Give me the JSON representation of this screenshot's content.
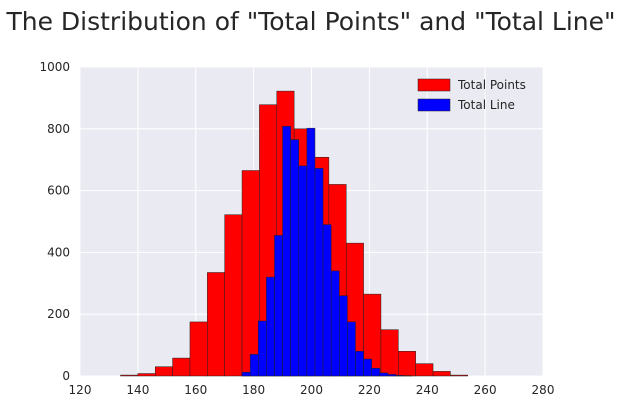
{
  "chart_data": {
    "type": "histogram",
    "title": "The Distribution of \"Total Points\" and \"Total Line\"",
    "xlabel": "",
    "ylabel": "",
    "xlim": [
      120,
      280
    ],
    "ylim": [
      0,
      1000
    ],
    "xticks": [
      120,
      140,
      160,
      180,
      200,
      220,
      240,
      260,
      280
    ],
    "yticks": [
      0,
      200,
      400,
      600,
      800,
      1000
    ],
    "grid": true,
    "legend_position": "top-right",
    "series": [
      {
        "name": "Total Points",
        "color": "#ff0000",
        "bin_edges": [
          134,
          140,
          146,
          152,
          158,
          164,
          170,
          176,
          182,
          188,
          194,
          200,
          206,
          212,
          218,
          224,
          230,
          236,
          242,
          248,
          254,
          260,
          266,
          272
        ],
        "counts": [
          3,
          8,
          30,
          58,
          175,
          335,
          522,
          665,
          878,
          922,
          800,
          708,
          620,
          430,
          265,
          150,
          80,
          40,
          15,
          3,
          0,
          0,
          0
        ]
      },
      {
        "name": "Total Line",
        "color": "#0000ff",
        "bin_edges": [
          176,
          178.8,
          181.6,
          184.4,
          187.2,
          190,
          192.8,
          195.6,
          198.4,
          201.2,
          204,
          206.8,
          209.6,
          212.4,
          215.2,
          218,
          220.8,
          223.6,
          226.4,
          229.2,
          232,
          234.8
        ],
        "counts": [
          12,
          70,
          178,
          320,
          455,
          808,
          765,
          680,
          802,
          672,
          490,
          340,
          260,
          175,
          80,
          55,
          25,
          10,
          5,
          2,
          1
        ]
      }
    ]
  }
}
